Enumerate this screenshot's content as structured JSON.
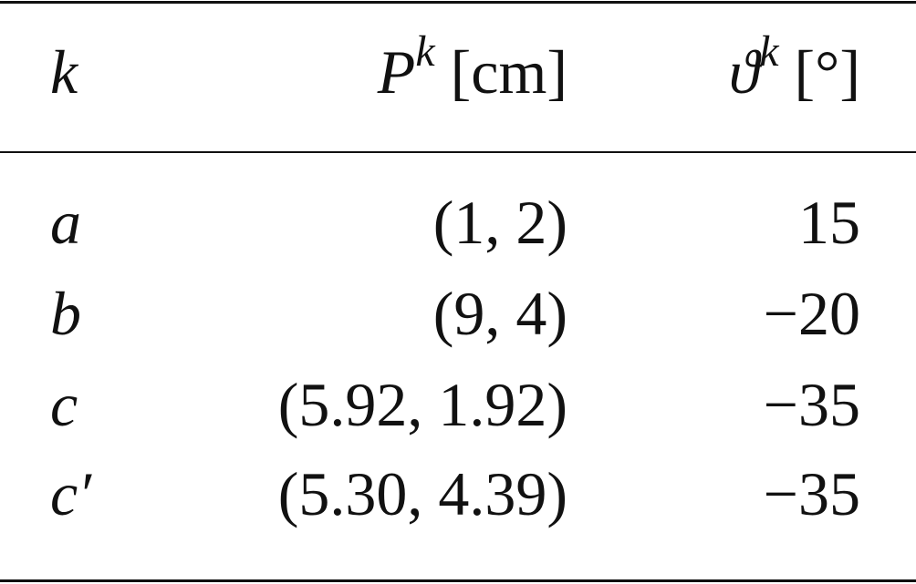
{
  "table": {
    "header": [
      {
        "symbol": "k"
      },
      {
        "symbol": "P",
        "superscript": "k",
        "unit": "[cm]"
      },
      {
        "symbol": "ϑ",
        "superscript": "k",
        "unit": "[°]"
      }
    ],
    "rows": [
      [
        "a",
        "(1, 2)",
        "15"
      ],
      [
        "b",
        "(9, 4)",
        "−20"
      ],
      [
        "c",
        "(5.92, 1.92)",
        "−35"
      ],
      [
        "c′",
        "(5.30, 4.39)",
        "−35"
      ]
    ]
  }
}
